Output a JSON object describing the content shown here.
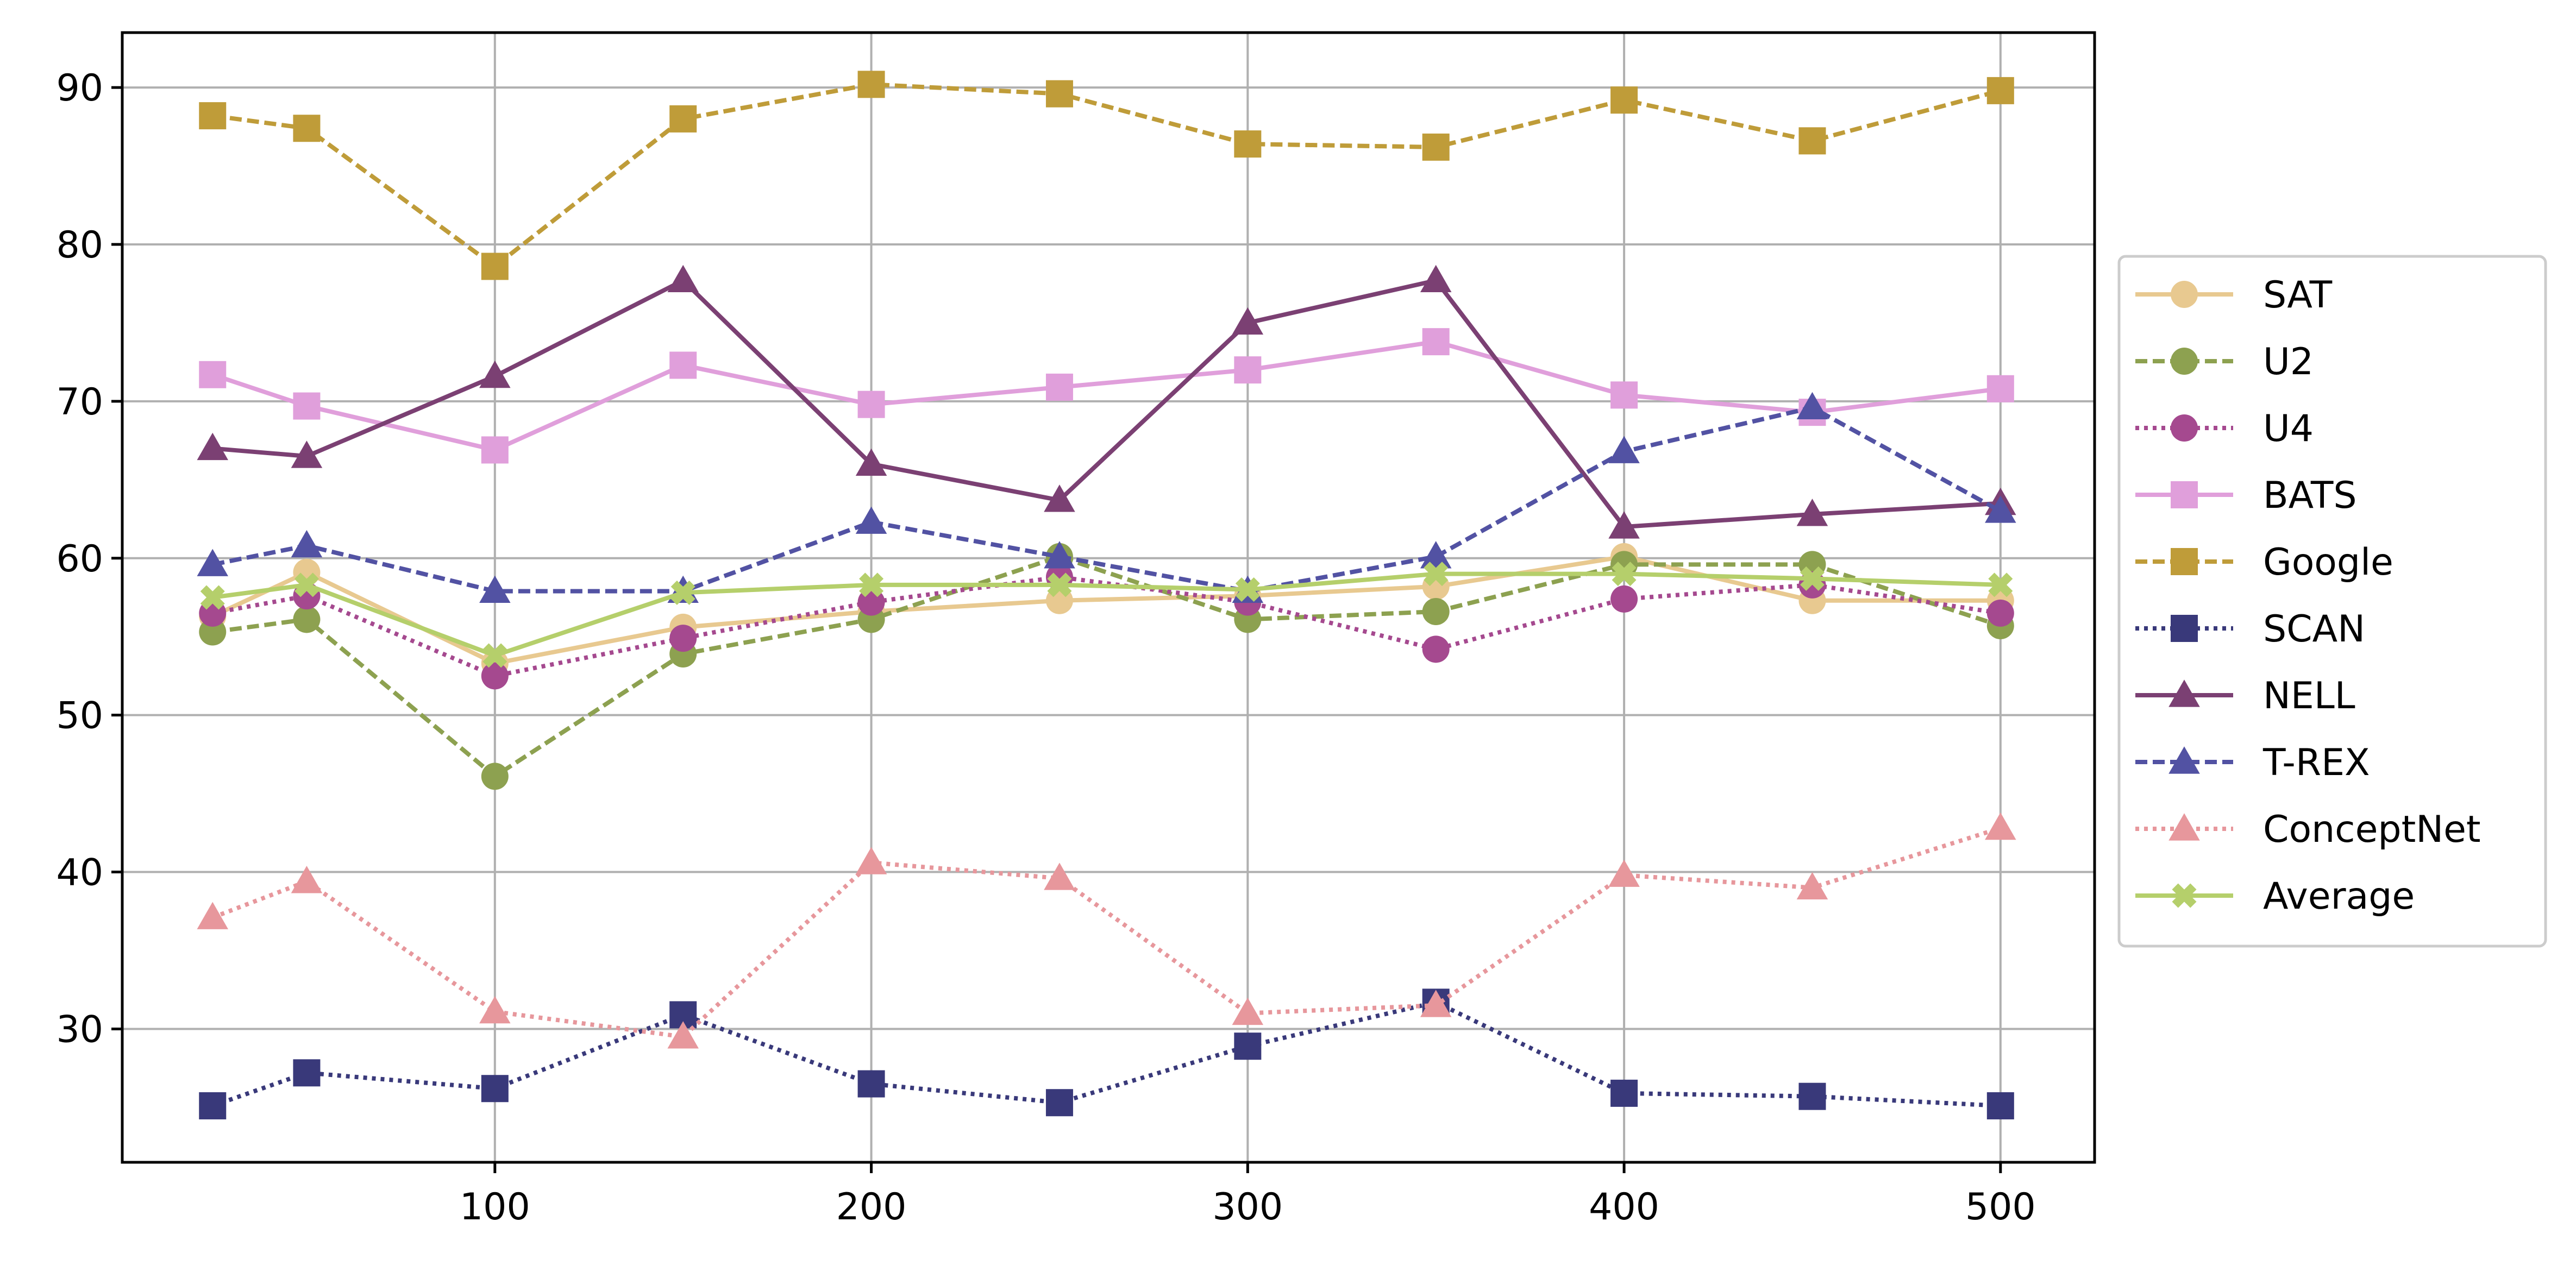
{
  "chart_data": {
    "type": "line",
    "title": "",
    "xlabel": "",
    "ylabel": "",
    "x": [
      25,
      50,
      100,
      150,
      200,
      250,
      300,
      350,
      400,
      450,
      500
    ],
    "xlim": [
      1,
      525
    ],
    "ylim": [
      21.5,
      93.5
    ],
    "xticks": [
      100,
      200,
      300,
      400,
      500
    ],
    "yticks": [
      30,
      40,
      50,
      60,
      70,
      80,
      90
    ],
    "grid": true,
    "legend_position": "right, outside plot area",
    "series": [
      {
        "name": "SAT",
        "color": "#e8c990",
        "marker": "circle",
        "linestyle": "solid",
        "values": [
          56.3,
          59.1,
          53.3,
          55.6,
          56.6,
          57.3,
          57.6,
          58.2,
          60.1,
          57.3,
          57.3
        ]
      },
      {
        "name": "U2",
        "color": "#8da150",
        "marker": "circle",
        "linestyle": "dashed",
        "values": [
          55.3,
          56.1,
          46.1,
          53.9,
          56.1,
          60.1,
          56.1,
          56.6,
          59.6,
          59.6,
          55.7
        ]
      },
      {
        "name": "U4",
        "color": "#a5498f",
        "marker": "circle",
        "linestyle": "dotted",
        "values": [
          56.5,
          57.6,
          52.5,
          54.9,
          57.2,
          58.8,
          57.2,
          54.2,
          57.4,
          58.3,
          56.5
        ]
      },
      {
        "name": "BATS",
        "color": "#e09fdb",
        "marker": "square",
        "linestyle": "solid",
        "values": [
          71.7,
          69.7,
          66.9,
          72.3,
          69.8,
          70.9,
          72.0,
          73.8,
          70.4,
          69.3,
          70.8
        ]
      },
      {
        "name": "Google",
        "color": "#bf9c39",
        "marker": "square",
        "linestyle": "dashed",
        "values": [
          88.2,
          87.4,
          78.6,
          88.0,
          90.2,
          89.6,
          86.4,
          86.2,
          89.2,
          86.6,
          89.8
        ]
      },
      {
        "name": "SCAN",
        "color": "#39397a",
        "marker": "square",
        "linestyle": "dotted",
        "values": [
          25.1,
          27.2,
          26.2,
          30.9,
          26.5,
          25.3,
          28.9,
          31.7,
          25.9,
          25.7,
          25.1
        ]
      },
      {
        "name": "NELL",
        "color": "#7b4073",
        "marker": "triangle",
        "linestyle": "solid",
        "values": [
          67.0,
          66.5,
          71.6,
          77.7,
          66.0,
          63.7,
          75.0,
          77.7,
          62.0,
          62.8,
          63.5
        ]
      },
      {
        "name": "T-REX",
        "color": "#5252a3",
        "marker": "triangle",
        "linestyle": "dashed",
        "values": [
          59.6,
          60.8,
          57.9,
          57.9,
          62.3,
          60.1,
          57.9,
          60.1,
          66.8,
          69.6,
          63.0
        ]
      },
      {
        "name": "ConceptNet",
        "color": "#e7979c",
        "marker": "triangle",
        "linestyle": "dotted",
        "values": [
          37.1,
          39.4,
          31.1,
          29.5,
          40.6,
          39.6,
          31.0,
          31.5,
          39.8,
          39.0,
          42.8
        ]
      },
      {
        "name": "Average",
        "color": "#b5cf6b",
        "marker": "x",
        "linestyle": "solid",
        "values": [
          57.5,
          58.3,
          53.8,
          57.8,
          58.3,
          58.3,
          58.0,
          59.0,
          59.0,
          58.7,
          58.3
        ]
      }
    ]
  }
}
